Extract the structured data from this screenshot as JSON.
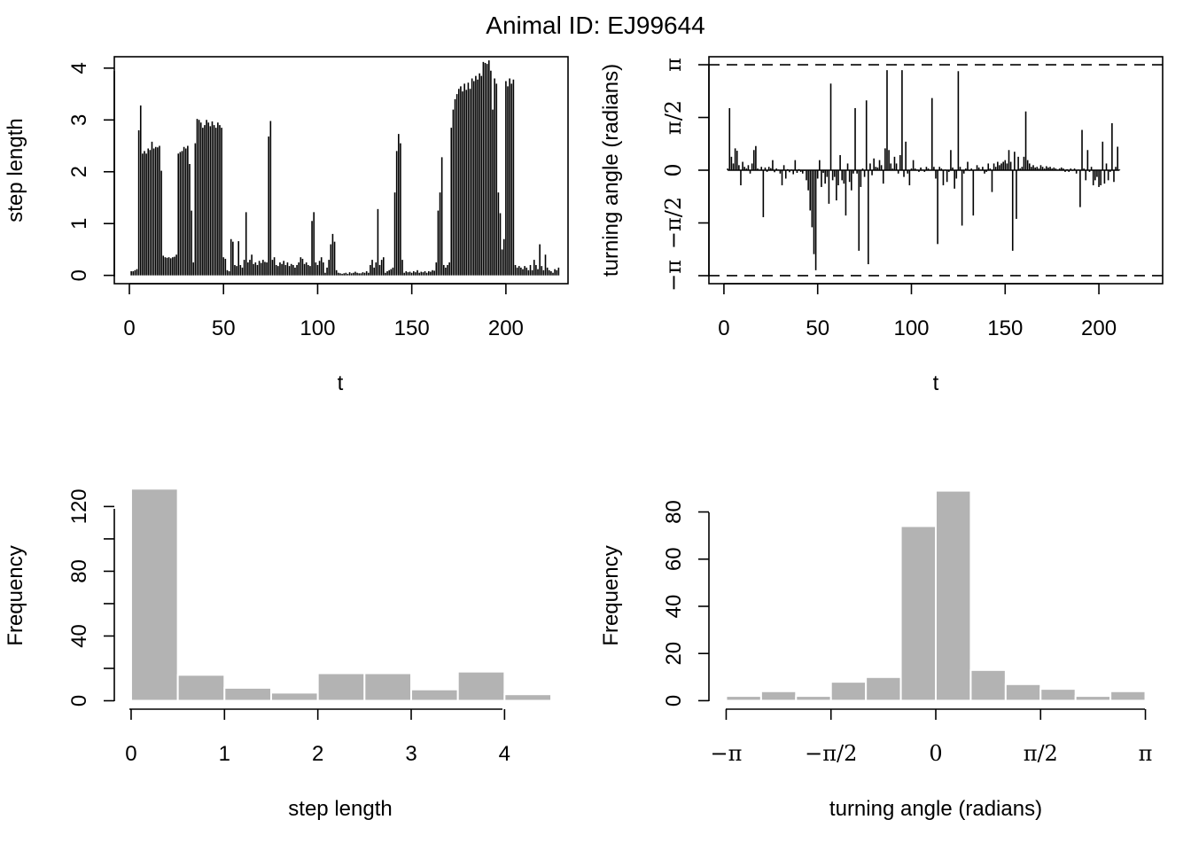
{
  "figure": {
    "title": "Animal ID: EJ99644"
  },
  "chart_data": [
    {
      "type": "bar",
      "panel": "step-series",
      "xlabel": "t",
      "ylabel": "step length",
      "xlim": [
        -8,
        233
      ],
      "ylim": [
        -0.16,
        4.22
      ],
      "xticks": [
        0,
        50,
        100,
        150,
        200
      ],
      "yticks": [
        0,
        1,
        2,
        3,
        4
      ],
      "x_start": 1,
      "values": [
        0.08,
        0.08,
        0.1,
        0.12,
        2.8,
        3.28,
        2.35,
        2.4,
        2.35,
        2.45,
        2.42,
        2.58,
        2.45,
        2.48,
        2.47,
        2.5,
        2.02,
        0.38,
        0.35,
        0.34,
        0.35,
        0.33,
        0.35,
        0.36,
        0.4,
        2.35,
        2.38,
        2.4,
        2.48,
        2.45,
        2.5,
        2.15,
        1.25,
        0.25,
        2.55,
        3.02,
        3.0,
        2.95,
        2.85,
        2.9,
        3.0,
        2.95,
        2.88,
        2.97,
        2.9,
        2.85,
        2.95,
        2.9,
        2.85,
        0.35,
        0.32,
        0.1,
        0.08,
        0.7,
        0.65,
        0.2,
        0.18,
        0.66,
        0.2,
        0.15,
        0.3,
        1.22,
        0.25,
        0.3,
        0.4,
        0.22,
        0.25,
        0.2,
        0.28,
        0.24,
        0.3,
        0.26,
        0.25,
        2.68,
        2.98,
        0.3,
        0.35,
        0.2,
        0.18,
        0.25,
        0.22,
        0.28,
        0.2,
        0.25,
        0.18,
        0.22,
        0.2,
        0.15,
        0.2,
        0.25,
        0.35,
        0.32,
        0.22,
        0.25,
        0.2,
        0.18,
        1.05,
        1.22,
        0.25,
        0.2,
        0.28,
        0.35,
        0.25,
        0.05,
        0.15,
        0.3,
        0.6,
        0.8,
        0.65,
        0.1,
        0.05,
        0.04,
        0.03,
        0.04,
        0.05,
        0.03,
        0.06,
        0.04,
        0.05,
        0.07,
        0.05,
        0.04,
        0.04,
        0.06,
        0.05,
        0.08,
        0.05,
        0.2,
        0.3,
        0.15,
        0.25,
        1.28,
        0.2,
        0.3,
        0.35,
        0.05,
        0.08,
        0.1,
        0.12,
        0.15,
        1.6,
        2.4,
        2.73,
        2.55,
        0.3,
        0.05,
        0.08,
        0.06,
        0.07,
        0.05,
        0.08,
        0.06,
        0.1,
        0.05,
        0.07,
        0.06,
        0.08,
        0.05,
        0.08,
        0.07,
        0.1,
        0.09,
        0.25,
        1.25,
        1.6,
        2.28,
        0.2,
        0.15,
        0.2,
        0.25,
        2.85,
        3.2,
        3.4,
        3.5,
        3.6,
        3.65,
        3.55,
        3.7,
        3.58,
        3.72,
        3.6,
        3.8,
        3.75,
        3.85,
        3.78,
        3.9,
        3.85,
        4.12,
        4.1,
        4.08,
        4.15,
        3.95,
        3.2,
        3.8,
        3.7,
        1.6,
        1.2,
        0.5,
        0.7,
        3.75,
        3.65,
        3.8,
        3.7,
        3.78,
        0.2,
        0.15,
        0.18,
        0.15,
        0.12,
        0.18,
        0.15,
        0.1,
        0.2,
        0.1,
        0.3,
        0.2,
        0.12,
        0.6,
        0.18,
        0.1,
        0.4,
        0.15,
        0.1,
        0.08,
        0.05,
        0.12,
        0.1,
        0.15
      ]
    },
    {
      "type": "bar",
      "panel": "angle-series",
      "xlabel": "t",
      "ylabel": "turning angle (radians)",
      "xlim": [
        -8,
        234
      ],
      "ylim": [
        -3.38,
        3.38
      ],
      "xticks": [
        0,
        50,
        100,
        150,
        200
      ],
      "yticks": [
        -3.14159,
        -1.5708,
        0,
        1.5708,
        3.14159
      ],
      "ytick_labels": [
        "−π",
        "−π/2",
        "0",
        "π/2",
        "π"
      ],
      "reference_lines": [
        -3.14159,
        3.14159
      ],
      "x_start": 2,
      "values": [
        0.05,
        1.85,
        0.4,
        0.2,
        0.65,
        0.58,
        0.15,
        -0.45,
        0.25,
        0.1,
        0.05,
        0.15,
        -0.1,
        0.2,
        0.6,
        0.72,
        0.05,
        0.02,
        0.1,
        -1.4,
        0.08,
        -0.05,
        0.1,
        0.06,
        0.3,
        -0.06,
        0.05,
        0.02,
        -0.1,
        -0.45,
        0.15,
        -0.25,
        0.03,
        -0.06,
        0.02,
        -0.12,
        0.3,
        -0.08,
        0.03,
        -0.05,
        -0.1,
        -0.02,
        -0.3,
        -0.6,
        -1.2,
        -1.7,
        -2.5,
        -2.98,
        -0.25,
        0.3,
        -0.5,
        -0.08,
        -0.4,
        -0.2,
        -1.0,
        2.58,
        -0.3,
        -0.2,
        -0.9,
        -0.45,
        0.45,
        -0.3,
        -0.4,
        -1.35,
        0.2,
        -0.35,
        -0.6,
        -0.1,
        1.85,
        -0.1,
        -2.4,
        -0.5,
        0.05,
        -0.2,
        2.08,
        -2.8,
        0.2,
        -0.15,
        0.35,
        0.1,
        0.08,
        0.3,
        0.15,
        -0.4,
        0.65,
        2.98,
        0.6,
        0.2,
        0.05,
        0.4,
        0.2,
        -0.1,
        0.45,
        2.98,
        -0.2,
        0.85,
        -0.1,
        -0.45,
        0.05,
        0.3,
        0.05,
        0.02,
        -0.05,
        0.08,
        0.02,
        -0.05,
        0.1,
        0.05,
        0.02,
        2.15,
        0.1,
        -0.25,
        -2.2,
        0.1,
        0.05,
        -0.45,
        0.02,
        -0.35,
        -0.05,
        0.6,
        0.08,
        -0.55,
        -0.25,
        2.95,
        0.1,
        -1.65,
        -0.1,
        0.05,
        0.25,
        -0.02,
        0.05,
        -1.35,
        0.02,
        0.15,
        0.08,
        0.02,
        0.1,
        -0.1,
        -0.05,
        0.2,
        0.05,
        -0.65,
        0.2,
        0.1,
        0.25,
        0.15,
        0.2,
        0.25,
        0.3,
        0.2,
        0.6,
        0.25,
        -2.4,
        0.55,
        -1.45,
        0.4,
        0.05,
        0.1,
        0.4,
        1.75,
        0.3,
        0.2,
        0.1,
        0.15,
        0.08,
        0.1,
        0.05,
        0.15,
        0.1,
        0.05,
        0.12,
        0.08,
        0.1,
        0.05,
        0.08,
        0.05,
        0.02,
        0.05,
        0.08,
        0.05,
        -0.05,
        0.03,
        -0.05,
        0.05,
        -0.02,
        0.05,
        -0.1,
        0.02,
        -1.1,
        1.2,
        0.05,
        -0.3,
        0.6,
        -0.05,
        0.1,
        -0.45,
        -0.3,
        -0.2,
        -0.5,
        -0.45,
        0.85,
        -0.4,
        0.2,
        -0.3,
        -0.05,
        1.4,
        -0.35,
        0.1,
        0.7,
        0.02
      ]
    },
    {
      "type": "bar",
      "panel": "step-histogram",
      "xlabel": "step length",
      "ylabel": "Frequency",
      "bin_edges": [
        0,
        0.5,
        1,
        1.5,
        2,
        2.5,
        3,
        3.5,
        4,
        4.5
      ],
      "values": [
        131,
        16,
        8,
        5,
        17,
        17,
        7,
        18,
        4
      ],
      "xlim": [
        -0.18,
        4.68
      ],
      "ylim": [
        -5.2,
        135
      ],
      "xticks": [
        0,
        1,
        2,
        3,
        4
      ],
      "yticks": [
        0,
        20,
        40,
        60,
        80,
        100,
        120
      ],
      "ytick_labels": [
        "0",
        "",
        "40",
        "",
        "80",
        "",
        "120"
      ]
    },
    {
      "type": "bar",
      "panel": "angle-histogram",
      "xlabel": "turning angle (radians)",
      "ylabel": "Frequency",
      "bin_edges": [
        -3.14159,
        -2.61799,
        -2.0944,
        -1.5708,
        -1.0472,
        -0.5236,
        0,
        0.5236,
        1.0472,
        1.5708,
        2.0944,
        2.61799,
        3.14159
      ],
      "values": [
        2,
        4,
        2,
        8,
        10,
        74,
        89,
        13,
        7,
        5,
        2,
        4
      ],
      "xlim": [
        -3.4,
        3.4
      ],
      "ylim": [
        -3.6,
        92.6
      ],
      "xticks": [
        -3.14159,
        -1.5708,
        0,
        1.5708,
        3.14159
      ],
      "xtick_labels": [
        "−π",
        "−π/2",
        "0",
        "π/2",
        "π"
      ],
      "yticks": [
        0,
        20,
        40,
        60,
        80
      ]
    }
  ]
}
